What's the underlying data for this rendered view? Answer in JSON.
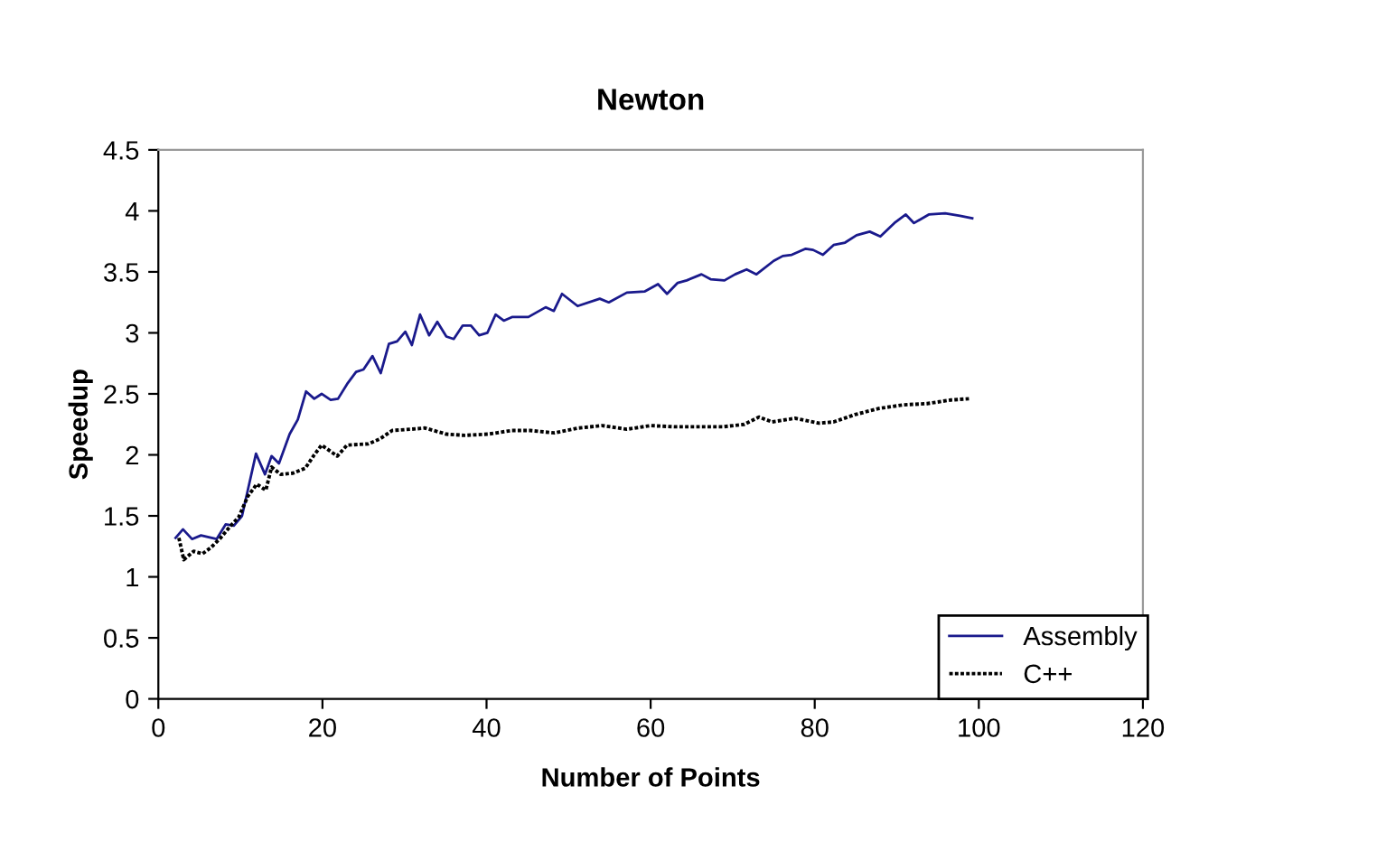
{
  "chart_data": {
    "type": "line",
    "title": "Newton",
    "xlabel": "Number of Points",
    "ylabel": "Speedup",
    "xlim": [
      0,
      120
    ],
    "xticks": [
      0,
      20,
      40,
      60,
      80,
      100,
      120
    ],
    "ylim": [
      0,
      4.5
    ],
    "yticks": [
      0,
      0.5,
      1,
      1.5,
      2,
      2.5,
      3,
      3.5,
      4,
      4.5
    ],
    "grid": false,
    "legend": "bottom right",
    "marker": "none",
    "series": [
      {
        "name": "Assembly",
        "color": "#1a1a8c",
        "line_style": "solid",
        "x": [
          2.1,
          3,
          4.1,
          5.2,
          7.1,
          8.2,
          9.2,
          10.2,
          11.9,
          13,
          13.8,
          14.7,
          16,
          17,
          18,
          19,
          19.9,
          21,
          21.9,
          23.1,
          24.1,
          25,
          26.1,
          27.1,
          28.1,
          29.1,
          30.1,
          30.9,
          31.9,
          33,
          34,
          35.1,
          36,
          37.1,
          38.1,
          39.1,
          40.1,
          41.1,
          42.1,
          43.1,
          45.1,
          47.2,
          48.2,
          49.2,
          51.1,
          53.8,
          54.9,
          57.1,
          59.3,
          60.9,
          62,
          63.3,
          64.4,
          66.2,
          67.3,
          69,
          70.3,
          71.7,
          72.9,
          75,
          76.1,
          77.2,
          78.9,
          79.8,
          81,
          82.3,
          83.7,
          85.1,
          86.7,
          88,
          89.7,
          91.1,
          92.1,
          93.9,
          95.9,
          97.7,
          99.2
        ],
        "values": [
          1.32,
          1.39,
          1.31,
          1.34,
          1.31,
          1.43,
          1.42,
          1.5,
          2.01,
          1.84,
          1.99,
          1.93,
          2.17,
          2.29,
          2.52,
          2.46,
          2.5,
          2.45,
          2.46,
          2.59,
          2.68,
          2.7,
          2.81,
          2.67,
          2.91,
          2.93,
          3.01,
          2.9,
          3.15,
          2.98,
          3.09,
          2.97,
          2.95,
          3.06,
          3.06,
          2.98,
          3.0,
          3.15,
          3.1,
          3.13,
          3.13,
          3.21,
          3.18,
          3.32,
          3.22,
          3.28,
          3.25,
          3.33,
          3.34,
          3.4,
          3.32,
          3.41,
          3.43,
          3.48,
          3.44,
          3.43,
          3.48,
          3.52,
          3.48,
          3.59,
          3.63,
          3.64,
          3.69,
          3.68,
          3.64,
          3.72,
          3.74,
          3.8,
          3.83,
          3.79,
          3.9,
          3.97,
          3.9,
          3.97,
          3.98,
          3.96,
          3.94
        ]
      },
      {
        "name": "C++",
        "color": "#000000",
        "line_style": "dotted",
        "x": [
          2.5,
          3.1,
          4.3,
          5.4,
          6.4,
          7.6,
          8.7,
          9.8,
          10.9,
          12,
          13.1,
          13.8,
          14.9,
          16.4,
          17.9,
          19,
          19.9,
          21.8,
          23,
          25.6,
          27,
          28.5,
          30.7,
          32.5,
          35.1,
          37.3,
          40.2,
          43.1,
          45.3,
          48.3,
          51.2,
          54.1,
          57.1,
          60,
          62.9,
          68.8,
          71.4,
          73.2,
          74.8,
          77.6,
          80.5,
          82.3,
          84.9,
          87.8,
          90.8,
          93.7,
          96.6,
          98.8
        ],
        "values": [
          1.32,
          1.14,
          1.21,
          1.19,
          1.24,
          1.32,
          1.41,
          1.49,
          1.66,
          1.76,
          1.71,
          1.9,
          1.84,
          1.85,
          1.89,
          2.0,
          2.08,
          1.99,
          2.08,
          2.09,
          2.13,
          2.2,
          2.21,
          2.22,
          2.17,
          2.16,
          2.17,
          2.2,
          2.2,
          2.18,
          2.22,
          2.24,
          2.21,
          2.24,
          2.23,
          2.23,
          2.25,
          2.31,
          2.27,
          2.3,
          2.26,
          2.27,
          2.33,
          2.38,
          2.41,
          2.42,
          2.45,
          2.46
        ]
      }
    ]
  }
}
